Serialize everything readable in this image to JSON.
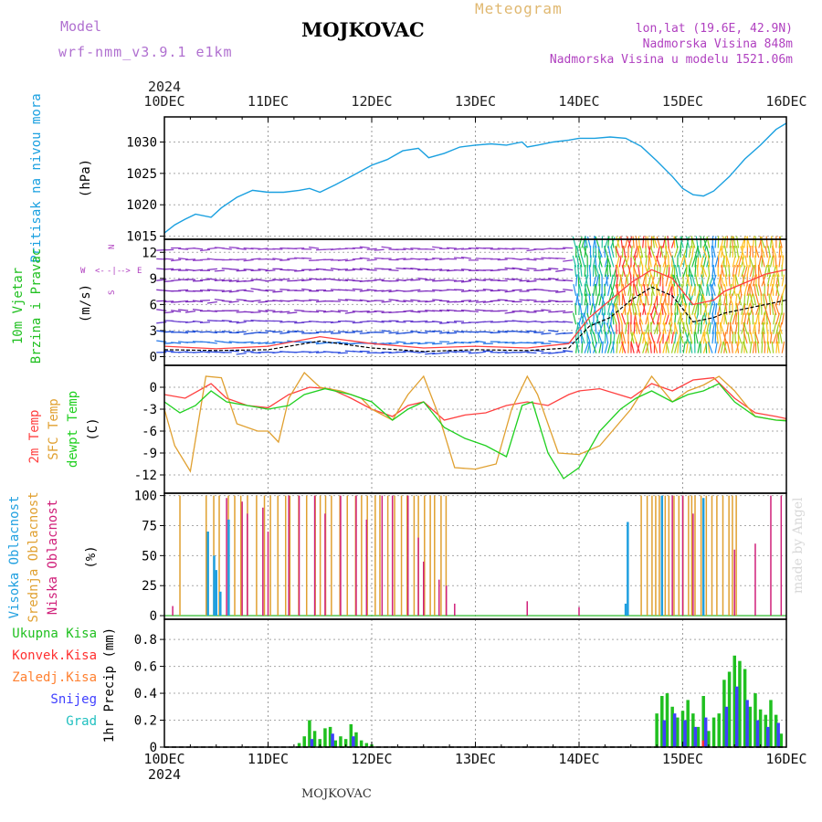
{
  "header": {
    "title": "MOJKOVAC",
    "meteogram_label": "Meteogram",
    "model_label": "Model",
    "model_value": "wrf-nmm_v3.9.1  e1km",
    "lonlat": "lon,lat (19.6E, 42.9N)",
    "altitude": "Nadmorska Visina 848m",
    "model_altitude": "Nadmorska Visina u modelu 1521.06m",
    "bottom_label": "MOJKOVAC",
    "watermark": "made by Angel"
  },
  "colors": {
    "pressure": "#1aa0e0",
    "wind_mean": "#000000",
    "wind_gust": "#ff4040",
    "temp_2m": "#ff4040",
    "temp_sfc": "#e0a030",
    "temp_dew": "#20d020",
    "cloud_high": "#20a0e0",
    "cloud_mid": "#e0a030",
    "cloud_low": "#d0207a",
    "precip_total": "#20c020",
    "precip_conv": "#ff3030",
    "precip_freeze": "#ff8030",
    "precip_snow": "#4040ff",
    "precip_hail": "#20c0c0"
  },
  "chart_data": {
    "type": "line",
    "x_axis": {
      "year": "2024",
      "ticks": [
        "10DEC",
        "11DEC",
        "12DEC",
        "13DEC",
        "14DEC",
        "15DEC",
        "16DEC"
      ],
      "range_days": [
        0,
        6
      ],
      "grid": true
    },
    "panels": [
      {
        "id": "pressure",
        "ylabel": "Pritisak na nivou mora",
        "unit": "(hPa)",
        "ylim": [
          1014.5,
          1034
        ],
        "yticks": [
          1015,
          1020,
          1025,
          1030
        ],
        "series": [
          {
            "name": "Pritisak na nivou mora",
            "color": "#1aa0e0",
            "x": [
              0,
              0.1,
              0.2,
              0.3,
              0.45,
              0.55,
              0.7,
              0.85,
              1.0,
              1.15,
              1.3,
              1.4,
              1.5,
              1.65,
              1.8,
              2.0,
              2.15,
              2.3,
              2.45,
              2.55,
              2.7,
              2.85,
              3.0,
              3.15,
              3.3,
              3.45,
              3.5,
              3.6,
              3.75,
              3.9,
              4.0,
              4.15,
              4.3,
              4.45,
              4.6,
              4.75,
              4.9,
              5.0,
              5.1,
              5.2,
              5.3,
              5.45,
              5.6,
              5.75,
              5.9,
              6.0
            ],
            "y": [
              1015.5,
              1016.8,
              1017.7,
              1018.5,
              1018.0,
              1019.5,
              1021.2,
              1022.3,
              1022.0,
              1022.0,
              1022.3,
              1022.6,
              1022.0,
              1023.2,
              1024.5,
              1026.3,
              1027.2,
              1028.6,
              1029.0,
              1027.5,
              1028.2,
              1029.2,
              1029.5,
              1029.7,
              1029.5,
              1030.0,
              1029.2,
              1029.5,
              1030.0,
              1030.3,
              1030.6,
              1030.6,
              1030.8,
              1030.6,
              1029.3,
              1027.0,
              1024.5,
              1022.6,
              1021.6,
              1021.4,
              1022.2,
              1024.5,
              1027.3,
              1029.5,
              1032.0,
              1033.0
            ]
          }
        ]
      },
      {
        "id": "wind",
        "ylabel": "10m Vjetar Brzina i Pravac",
        "unit": "(m/s)",
        "compass": [
          "W",
          "<-",
          "-|-",
          "->",
          "E",
          "S",
          "N"
        ],
        "ylim": [
          -1,
          13.5
        ],
        "yticks": [
          0,
          3,
          6,
          9,
          12
        ],
        "series": [
          {
            "name": "mean speed",
            "color": "#000000",
            "x": [
              0,
              0.5,
              1.0,
              1.5,
              2.0,
              2.5,
              3.0,
              3.5,
              3.9,
              4.1,
              4.3,
              4.5,
              4.7,
              4.9,
              5.1,
              5.3,
              5.4,
              5.6,
              5.8,
              6.0
            ],
            "y": [
              0.8,
              0.7,
              0.8,
              1.8,
              1.0,
              0.6,
              0.8,
              0.7,
              1.0,
              3.5,
              4.5,
              6.5,
              8.0,
              7.0,
              4.0,
              4.5,
              5.0,
              5.5,
              6.0,
              6.5
            ]
          },
          {
            "name": "gust",
            "color": "#ff4040",
            "x": [
              0,
              0.5,
              1.0,
              1.5,
              2.0,
              2.5,
              3.0,
              3.5,
              3.9,
              4.1,
              4.3,
              4.5,
              4.7,
              4.9,
              5.1,
              5.3,
              5.4,
              5.6,
              5.8,
              6.0
            ],
            "y": [
              1.2,
              0.9,
              1.2,
              2.3,
              1.5,
              1.0,
              1.2,
              1.0,
              1.5,
              4.5,
              6.5,
              8.5,
              10.0,
              9.0,
              6.0,
              6.5,
              7.5,
              8.5,
              9.5,
              10.0
            ]
          }
        ]
      },
      {
        "id": "temperature",
        "ylabel": [
          "2m Temp",
          "SFC Temp",
          "dewpt Temp"
        ],
        "unit": "(C)",
        "ylim": [
          -14.5,
          3
        ],
        "yticks": [
          0,
          -3,
          -6,
          -9,
          -12
        ],
        "series": [
          {
            "name": "2m Temp",
            "color": "#ff4040",
            "x": [
              0,
              0.2,
              0.45,
              0.6,
              0.8,
              1.0,
              1.2,
              1.4,
              1.6,
              1.8,
              2.0,
              2.2,
              2.35,
              2.5,
              2.7,
              2.9,
              3.1,
              3.3,
              3.5,
              3.7,
              3.9,
              4.0,
              4.2,
              4.5,
              4.7,
              4.9,
              5.1,
              5.3,
              5.5,
              5.7,
              5.9,
              6.0
            ],
            "y": [
              -1,
              -1.5,
              0.5,
              -1.5,
              -2.5,
              -2.8,
              -1.0,
              0,
              -0.2,
              -1.5,
              -3.0,
              -4.0,
              -2.5,
              -2.0,
              -4.5,
              -3.8,
              -3.5,
              -2.5,
              -2.0,
              -2.5,
              -1.0,
              -0.5,
              -0.2,
              -1.5,
              0.5,
              -0.5,
              1.0,
              1.3,
              -1.5,
              -3.5,
              -4.0,
              -4.3
            ]
          },
          {
            "name": "SFC Temp",
            "color": "#e0a030",
            "x": [
              0,
              0.1,
              0.25,
              0.4,
              0.55,
              0.7,
              0.9,
              1.0,
              1.1,
              1.2,
              1.35,
              1.5,
              1.7,
              1.9,
              2.0,
              2.2,
              2.35,
              2.5,
              2.65,
              2.8,
              3.0,
              3.2,
              3.35,
              3.5,
              3.6,
              3.8,
              4.0,
              4.2,
              4.5,
              4.7,
              4.9,
              5.05,
              5.2,
              5.35,
              5.5,
              5.7,
              5.9,
              6.0
            ],
            "y": [
              -3,
              -8,
              -11.5,
              1.5,
              1.3,
              -5.0,
              -6.0,
              -6.0,
              -7.5,
              -1.5,
              2.0,
              0,
              -0.5,
              -1.5,
              -3.0,
              -4.5,
              -1.0,
              1.5,
              -4.0,
              -11.0,
              -11.2,
              -10.5,
              -3.0,
              1.5,
              -1.0,
              -9.0,
              -9.2,
              -8.0,
              -3.0,
              1.5,
              -2.0,
              -0.5,
              0.3,
              1.5,
              -0.5,
              -4.0,
              -4.5,
              -4.5
            ]
          },
          {
            "name": "dewpt Temp",
            "color": "#20d020",
            "x": [
              0,
              0.15,
              0.3,
              0.45,
              0.6,
              0.8,
              1.0,
              1.2,
              1.35,
              1.55,
              1.8,
              2.0,
              2.2,
              2.35,
              2.5,
              2.7,
              2.9,
              3.1,
              3.3,
              3.45,
              3.55,
              3.7,
              3.85,
              4.0,
              4.2,
              4.4,
              4.55,
              4.7,
              4.9,
              5.05,
              5.2,
              5.35,
              5.5,
              5.7,
              5.9,
              6.0
            ],
            "y": [
              -2,
              -3.5,
              -2.5,
              -0.5,
              -2.0,
              -2.5,
              -3.0,
              -2.5,
              -1.0,
              -0.2,
              -1.0,
              -2.0,
              -4.5,
              -3.0,
              -2.0,
              -5.5,
              -7.0,
              -8.0,
              -9.5,
              -2.5,
              -2.0,
              -9.0,
              -12.5,
              -11.0,
              -6.0,
              -3.0,
              -1.5,
              -0.5,
              -2.0,
              -1.0,
              -0.5,
              0.5,
              -2.0,
              -4.0,
              -4.5,
              -4.6
            ]
          }
        ]
      },
      {
        "id": "clouds",
        "ylabel": [
          "Visoka Oblacnost",
          "Srednja Oblacnost",
          "Niska Oblacnost"
        ],
        "unit": "(%)",
        "ylim": [
          -3,
          102
        ],
        "yticks": [
          0,
          25,
          50,
          75,
          100
        ]
      },
      {
        "id": "precip",
        "ylabel": "1hr Precip (mm)",
        "legend": [
          "Ukupna Kisa",
          "Konvek.Kisa",
          "Zaledj.Kisa",
          "Snijeg",
          "Grad"
        ],
        "ylim": [
          0,
          0.95
        ],
        "yticks": [
          0,
          0.2,
          0.4,
          0.6,
          0.8
        ],
        "ytick_labels": [
          "0",
          "0.2",
          "0.4",
          "0.6",
          "0.8"
        ],
        "series": [
          {
            "name": "Ukupna Kisa",
            "color": "#20c020",
            "x": [
              1.3,
              1.35,
              1.4,
              1.45,
              1.5,
              1.55,
              1.6,
              1.65,
              1.7,
              1.75,
              1.8,
              1.85,
              1.9,
              1.95,
              2.0,
              4.75,
              4.8,
              4.85,
              4.9,
              4.95,
              5.0,
              5.05,
              5.1,
              5.15,
              5.2,
              5.25,
              5.3,
              5.35,
              5.4,
              5.45,
              5.5,
              5.55,
              5.6,
              5.65,
              5.7,
              5.75,
              5.8,
              5.85,
              5.9,
              5.95
            ],
            "y": [
              0.03,
              0.08,
              0.2,
              0.12,
              0.06,
              0.14,
              0.15,
              0.05,
              0.08,
              0.06,
              0.17,
              0.11,
              0.05,
              0.03,
              0.02,
              0.25,
              0.38,
              0.4,
              0.3,
              0.22,
              0.27,
              0.35,
              0.25,
              0.15,
              0.38,
              0.12,
              0.22,
              0.25,
              0.5,
              0.56,
              0.68,
              0.64,
              0.58,
              0.3,
              0.4,
              0.28,
              0.24,
              0.35,
              0.24,
              0.1
            ]
          },
          {
            "name": "Konvek.Kisa",
            "color": "#ff3030",
            "x": [
              5.2
            ],
            "y": [
              0.05
            ]
          },
          {
            "name": "Snijeg",
            "color": "#4040ff",
            "x": [
              1.4,
              1.6,
              1.8,
              4.8,
              4.9,
              5.0,
              5.1,
              5.2,
              5.4,
              5.5,
              5.6,
              5.7,
              5.8,
              5.9
            ],
            "y": [
              0.06,
              0.1,
              0.08,
              0.2,
              0.25,
              0.2,
              0.15,
              0.22,
              0.3,
              0.45,
              0.35,
              0.2,
              0.15,
              0.18
            ]
          }
        ]
      }
    ]
  }
}
